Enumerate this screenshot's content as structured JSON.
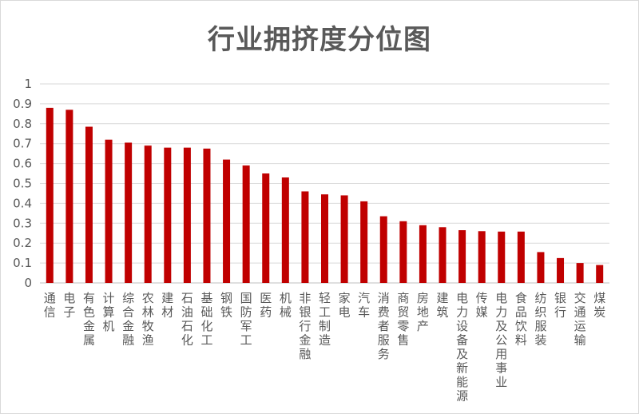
{
  "chart_data": {
    "type": "bar",
    "title": "行业拥挤度分位图",
    "xlabel": "",
    "ylabel": "",
    "ylim": [
      0,
      1
    ],
    "yticks": [
      "0",
      "0.1",
      "0.2",
      "0.3",
      "0.4",
      "0.5",
      "0.6",
      "0.7",
      "0.8",
      "0.9",
      "1"
    ],
    "grid": true,
    "bar_color": "#c00000",
    "categories": [
      "通信",
      "电子",
      "有色金属",
      "计算机",
      "综合金融",
      "农林牧渔",
      "建材",
      "石油石化",
      "基础化工",
      "钢铁",
      "国防军工",
      "医药",
      "机械",
      "非银行金融",
      "轻工制造",
      "家电",
      "汽车",
      "消费者服务",
      "商贸零售",
      "房地产",
      "建筑",
      "电力设备及新能源",
      "传媒",
      "电力及公用事业",
      "食品饮料",
      "纺织服装",
      "银行",
      "交通运输",
      "煤炭"
    ],
    "values": [
      0.88,
      0.87,
      0.785,
      0.72,
      0.705,
      0.69,
      0.68,
      0.68,
      0.675,
      0.62,
      0.59,
      0.55,
      0.53,
      0.46,
      0.445,
      0.44,
      0.41,
      0.335,
      0.31,
      0.29,
      0.28,
      0.265,
      0.26,
      0.258,
      0.258,
      0.155,
      0.125,
      0.1,
      0.09
    ]
  }
}
